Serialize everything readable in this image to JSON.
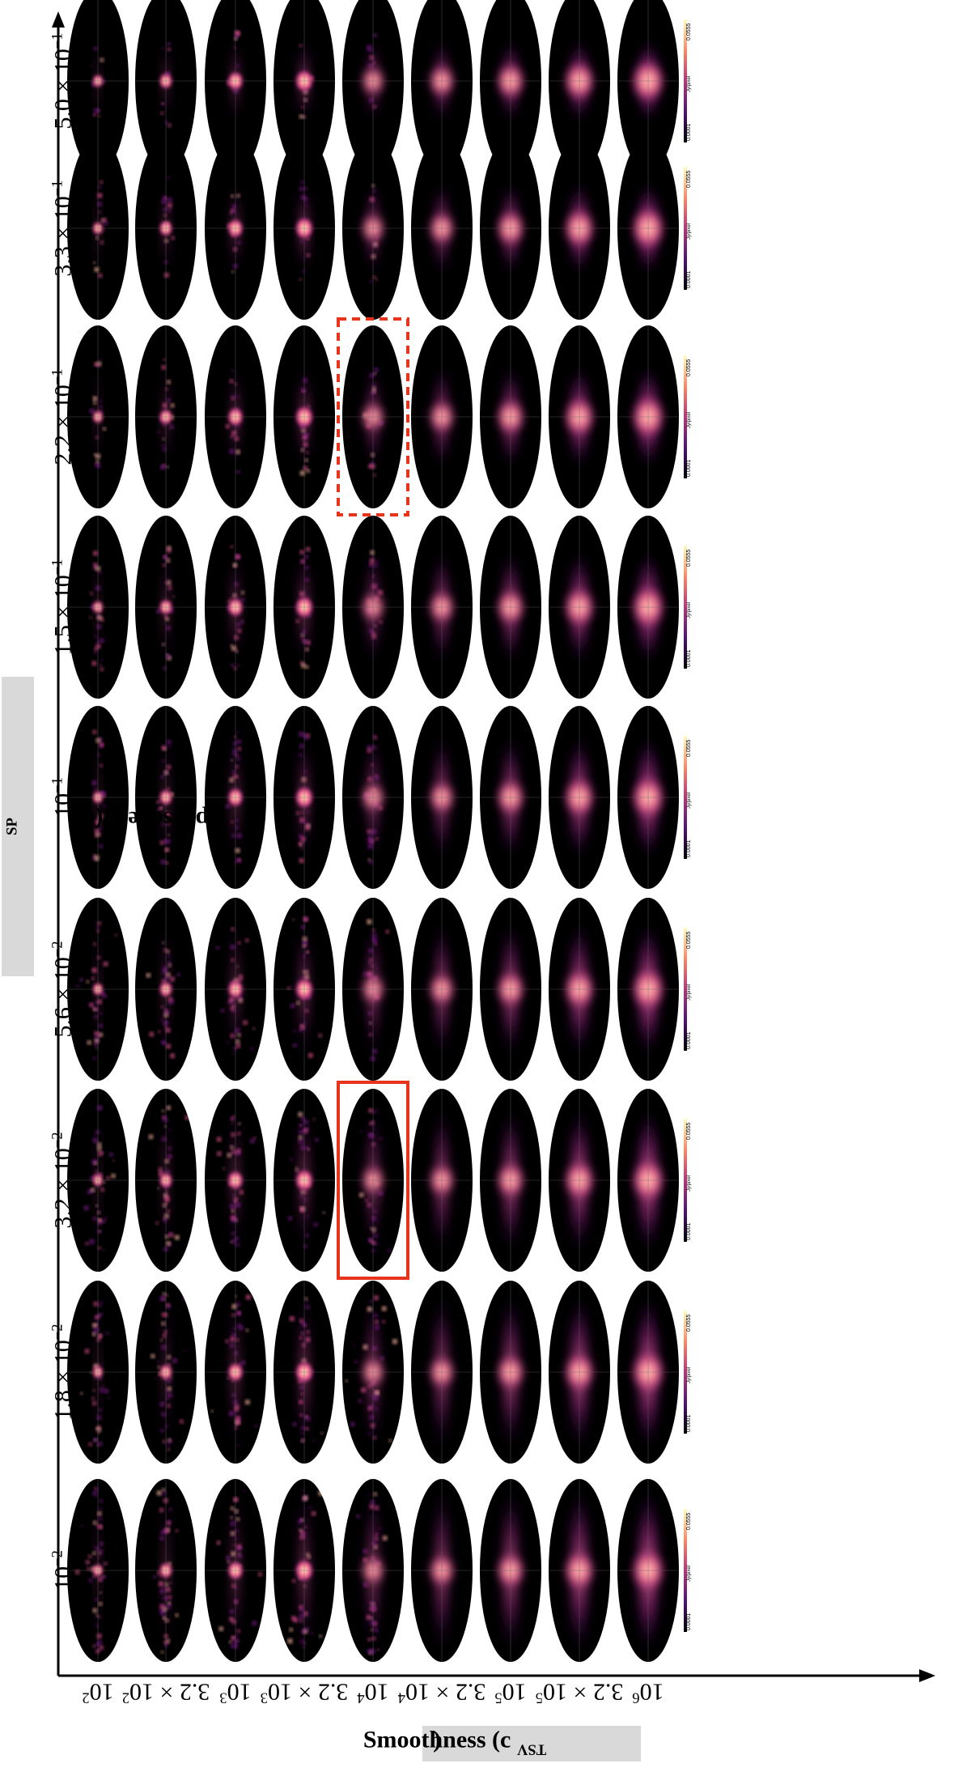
{
  "y_axis_title": {
    "text": "Sparseness (c",
    "sup": "SP",
    "close": ")"
  },
  "x_axis_title": {
    "text": "Smoothness (c",
    "sup": "TSV",
    "close": ")"
  },
  "sparseness_values": [
    {
      "base": "10",
      "exp": "−2"
    },
    {
      "base": "1.8 × 10",
      "exp": "−2"
    },
    {
      "base": "3.2 × 10",
      "exp": "−2"
    },
    {
      "base": "5.6 × 10",
      "exp": "−2"
    },
    {
      "base": "10",
      "exp": "−1"
    },
    {
      "base": "1.5 × 10",
      "exp": "−1"
    },
    {
      "base": "2.2 × 10",
      "exp": "−1"
    },
    {
      "base": "3.3 × 10",
      "exp": "−1"
    },
    {
      "base": "5.0 × 10",
      "exp": "−1"
    }
  ],
  "smoothness_values": [
    {
      "base": "10",
      "exp": "2"
    },
    {
      "base": "3.2 × 10",
      "exp": "2"
    },
    {
      "base": "10",
      "exp": "3"
    },
    {
      "base": "3.2 × 10",
      "exp": "3"
    },
    {
      "base": "10",
      "exp": "4"
    },
    {
      "base": "3.2 × 10",
      "exp": "4"
    },
    {
      "base": "10",
      "exp": "5"
    },
    {
      "base": "3.2 × 10",
      "exp": "5"
    },
    {
      "base": "10",
      "exp": "6"
    }
  ],
  "colorbar": {
    "min": "0.0001",
    "max": "0.0555",
    "unit": "Jy/pixel"
  },
  "highlights": {
    "solid": {
      "sparseness_index": 2,
      "smoothness_index": 4,
      "color": "#e8341c"
    },
    "dashed": {
      "sparseness_index": 6,
      "smoothness_index": 4,
      "color": "#e8341c"
    }
  },
  "colors": {
    "panel_background": "#000000",
    "emission_core": "#fff3c8",
    "emission_mid": "#f0609a",
    "emission_faint": "#3a0a6a"
  }
}
